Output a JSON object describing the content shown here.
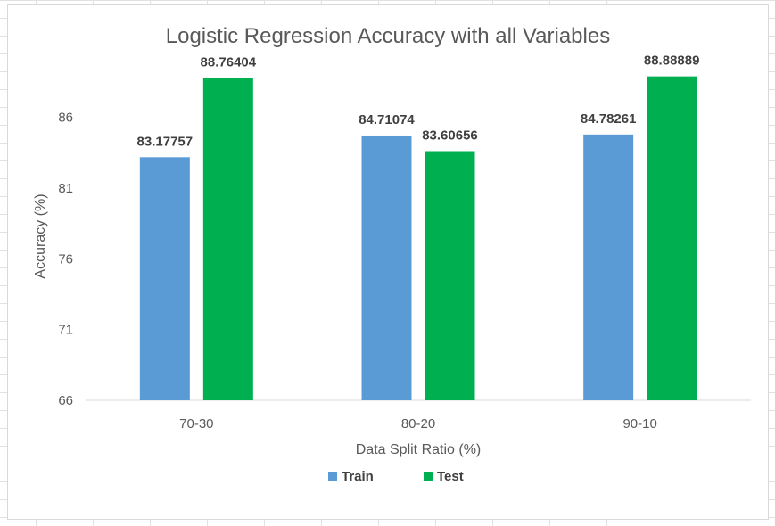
{
  "chart_data": {
    "type": "bar",
    "title": "Logistic Regression Accuracy with all Variables",
    "xlabel": "Data Split Ratio (%)",
    "ylabel": "Accuracy (%)",
    "categories": [
      "70-30",
      "80-20",
      "90-10"
    ],
    "series": [
      {
        "name": "Train",
        "color": "#5b9bd5",
        "values": [
          83.17757,
          84.71074,
          84.78261
        ],
        "labels": [
          "83.17757",
          "84.71074",
          "84.78261"
        ]
      },
      {
        "name": "Test",
        "color": "#00b050",
        "values": [
          88.76404,
          83.60656,
          88.88889
        ],
        "labels": [
          "88.76404",
          "83.60656",
          "88.88889"
        ]
      }
    ],
    "ylim": [
      66,
      90
    ],
    "yticks": [
      66,
      71,
      76,
      81,
      86
    ],
    "grid": false,
    "legend": "bottom"
  }
}
